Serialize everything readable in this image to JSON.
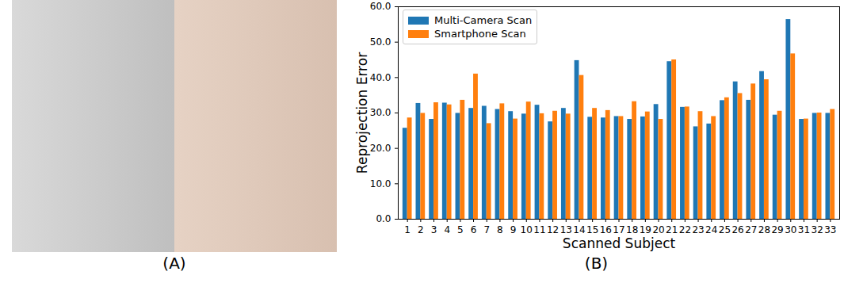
{
  "panel_labels": [
    "(A)",
    "(B)"
  ],
  "chart_data": {
    "type": "bar",
    "x_label": "Scanned Subject",
    "y_label": "Reprojection Error",
    "categories": [
      "1",
      "2",
      "3",
      "4",
      "5",
      "6",
      "7",
      "8",
      "9",
      "10",
      "11",
      "12",
      "13",
      "14",
      "15",
      "16",
      "17",
      "18",
      "19",
      "20",
      "21",
      "22",
      "23",
      "24",
      "25",
      "26",
      "27",
      "28",
      "29",
      "30",
      "31",
      "32",
      "33"
    ],
    "series": [
      {
        "name": "Multi-Camera Scan",
        "color": "#1f77b4",
        "values": [
          25.7,
          32.7,
          28.2,
          32.8,
          29.9,
          31.3,
          31.9,
          31.0,
          30.4,
          29.7,
          32.2,
          27.5,
          31.3,
          44.8,
          28.8,
          28.6,
          29.0,
          28.2,
          28.9,
          32.4,
          44.5,
          31.6,
          26.1,
          26.9,
          33.5,
          38.8,
          33.6,
          41.7,
          29.4,
          56.4,
          28.2,
          29.9,
          29.9
        ]
      },
      {
        "name": "Smartphone Scan",
        "color": "#ff7f0e",
        "values": [
          28.6,
          29.9,
          32.9,
          32.3,
          33.6,
          41.0,
          27.0,
          32.6,
          28.3,
          33.1,
          29.8,
          30.5,
          29.7,
          40.6,
          31.3,
          30.7,
          29.0,
          33.2,
          30.3,
          28.2,
          45.0,
          31.7,
          30.4,
          29.0,
          34.3,
          35.5,
          38.2,
          39.4,
          30.5,
          46.7,
          28.3,
          30.0,
          31.0
        ]
      }
    ],
    "ylim": [
      0,
      60
    ],
    "yticks": [
      {
        "value": 0,
        "label": "0.0"
      },
      {
        "value": 10,
        "label": "10.0"
      },
      {
        "value": 20,
        "label": "20.0"
      },
      {
        "value": 30,
        "label": "30.0"
      },
      {
        "value": 40,
        "label": "40.0"
      },
      {
        "value": 50,
        "label": "50.0"
      },
      {
        "value": 60,
        "label": "60.0"
      }
    ],
    "grid": false,
    "legend": "upper left"
  }
}
